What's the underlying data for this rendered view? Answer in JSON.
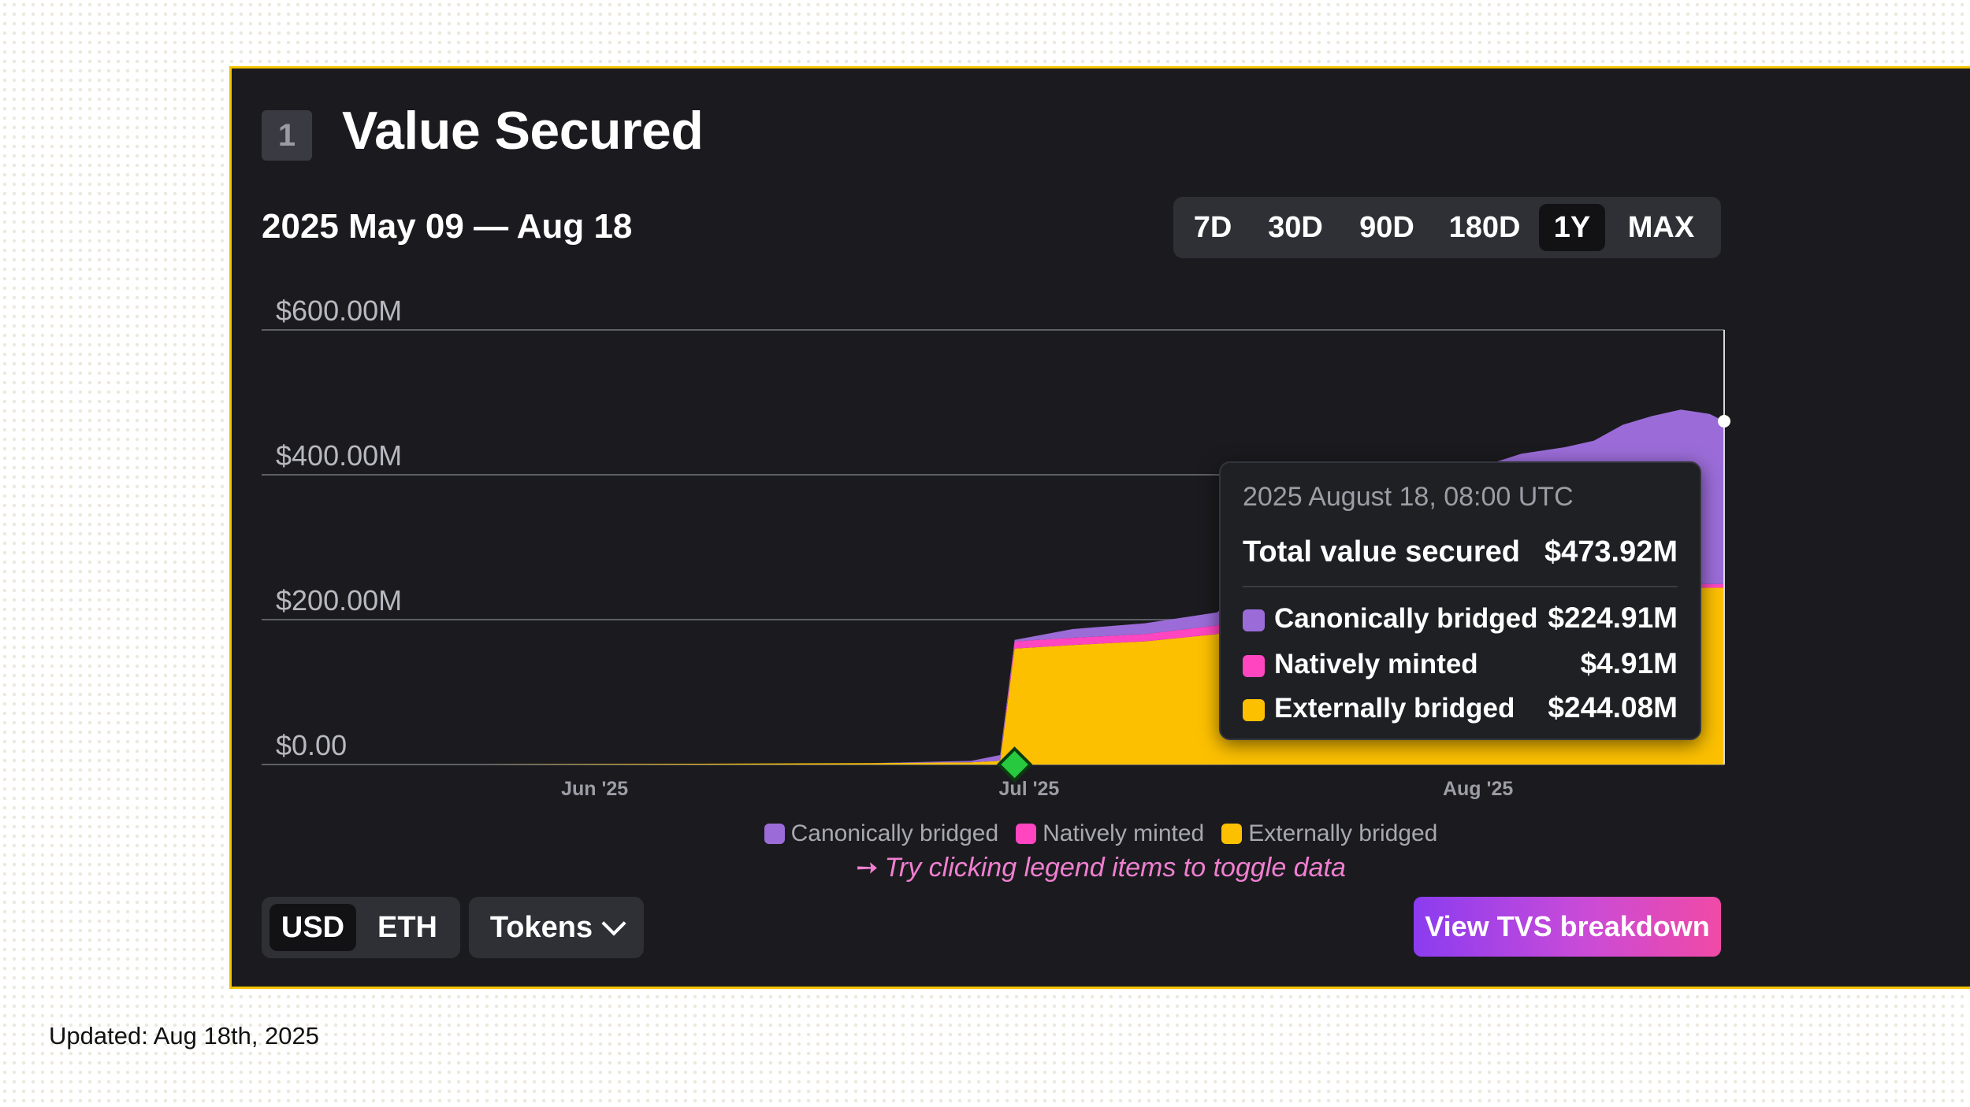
{
  "section": {
    "number": "1",
    "title": "Value Secured"
  },
  "date_range": "2025 May 09 — Aug 18",
  "timeframes": [
    {
      "label": "7D",
      "active": false
    },
    {
      "label": "30D",
      "active": false
    },
    {
      "label": "90D",
      "active": false
    },
    {
      "label": "180D",
      "active": false
    },
    {
      "label": "1Y",
      "active": true
    },
    {
      "label": "MAX",
      "active": false
    }
  ],
  "chart_data": {
    "type": "area",
    "stacked": true,
    "y_tick_labels": [
      "$0.00",
      "$200.00M",
      "$400.00M",
      "$600.00M"
    ],
    "x_tick_labels": [
      "Jun '25",
      "Jul '25",
      "Aug '25"
    ],
    "ylim": [
      0,
      600
    ],
    "y_unit": "USD millions",
    "x": [
      "2025-05-09",
      "2025-05-24",
      "2025-06-06",
      "2025-06-20",
      "2025-06-27",
      "2025-06-29",
      "2025-06-30",
      "2025-07-04",
      "2025-07-09",
      "2025-07-14",
      "2025-07-19",
      "2025-07-21",
      "2025-07-24",
      "2025-07-27",
      "2025-07-29",
      "2025-08-01",
      "2025-08-04",
      "2025-08-07",
      "2025-08-09",
      "2025-08-11",
      "2025-08-13",
      "2025-08-15",
      "2025-08-17",
      "2025-08-18"
    ],
    "series": [
      {
        "name": "Externally bridged",
        "color": "#fcc000",
        "values": [
          0,
          0,
          1,
          2,
          3,
          5,
          160,
          165,
          170,
          180,
          230,
          255,
          255,
          250,
          250,
          252,
          256,
          250,
          245,
          248,
          246,
          245,
          244,
          244.08
        ]
      },
      {
        "name": "Natively minted",
        "color": "#ff46c0",
        "values": [
          0,
          0,
          0,
          0,
          0,
          0,
          10,
          10,
          10,
          12,
          18,
          20,
          20,
          20,
          20,
          8,
          8,
          8,
          7,
          6,
          5,
          5,
          5,
          4.91
        ]
      },
      {
        "name": "Canonically bridged",
        "color": "#9b6cd8",
        "values": [
          0,
          0,
          0,
          0,
          2,
          8,
          2,
          12,
          15,
          18,
          70,
          85,
          88,
          95,
          120,
          150,
          165,
          180,
          195,
          215,
          230,
          240,
          235,
          224.91
        ]
      }
    ],
    "legend_position": "bottom",
    "grid": true,
    "selected_point": "2025-06-30"
  },
  "tooltip": {
    "date": "2025 August 18, 08:00 UTC",
    "total_label": "Total value secured",
    "total_value": "$473.92M",
    "rows": [
      {
        "label": "Canonically bridged",
        "value": "$224.91M",
        "color": "#9b6cd8"
      },
      {
        "label": "Natively minted",
        "value": "$4.91M",
        "color": "#ff46c0"
      },
      {
        "label": "Externally bridged",
        "value": "$244.08M",
        "color": "#fcc000"
      }
    ]
  },
  "legend": [
    {
      "label": "Canonically bridged",
      "color": "#9b6cd8"
    },
    {
      "label": "Natively minted",
      "color": "#ff46c0"
    },
    {
      "label": "Externally bridged",
      "color": "#fcc000"
    }
  ],
  "hint": "Try clicking legend items to toggle data",
  "currency": [
    {
      "label": "USD",
      "active": true
    },
    {
      "label": "ETH",
      "active": false
    }
  ],
  "tokens_label": "Tokens",
  "breakdown_button": "View TVS breakdown",
  "updated": "Updated: Aug 18th, 2025",
  "colors": {
    "border": "#f5c400",
    "card_bg": "#1b1b1f",
    "accent_pink": "#f07fd0"
  }
}
